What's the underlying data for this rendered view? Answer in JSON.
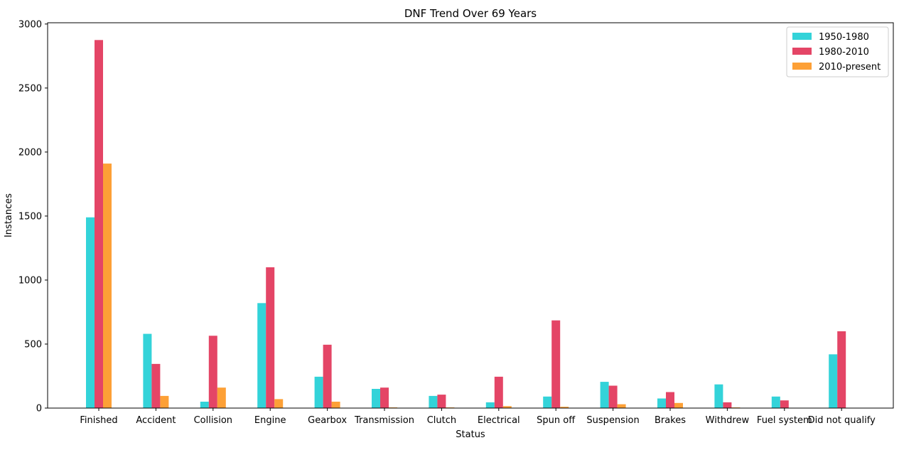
{
  "chart_data": {
    "type": "bar",
    "title": "DNF Trend Over 69 Years",
    "xlabel": "Status",
    "ylabel": "Instances",
    "ylim": [
      0,
      3010
    ],
    "yticks": [
      0,
      500,
      1000,
      1500,
      2000,
      2500,
      3000
    ],
    "grid": false,
    "legend_position": "top-right",
    "categories": [
      "Finished",
      "Accident",
      "Collision",
      "Engine",
      "Gearbox",
      "Transmission",
      "Clutch",
      "Electrical",
      "Spun off",
      "Suspension",
      "Brakes",
      "Withdrew",
      "Fuel system",
      "Did not qualify"
    ],
    "series": [
      {
        "name": "1950-1980",
        "color": "#33d3d9",
        "values": [
          1490,
          580,
          50,
          820,
          245,
          150,
          95,
          45,
          90,
          205,
          75,
          185,
          90,
          420
        ]
      },
      {
        "name": "1980-2010",
        "color": "#e44566",
        "values": [
          2875,
          345,
          565,
          1100,
          495,
          160,
          105,
          245,
          685,
          175,
          125,
          45,
          60,
          600
        ]
      },
      {
        "name": "2010-present",
        "color": "#fda036",
        "values": [
          1910,
          95,
          160,
          70,
          50,
          5,
          5,
          15,
          10,
          30,
          40,
          5,
          0,
          0
        ]
      }
    ]
  }
}
